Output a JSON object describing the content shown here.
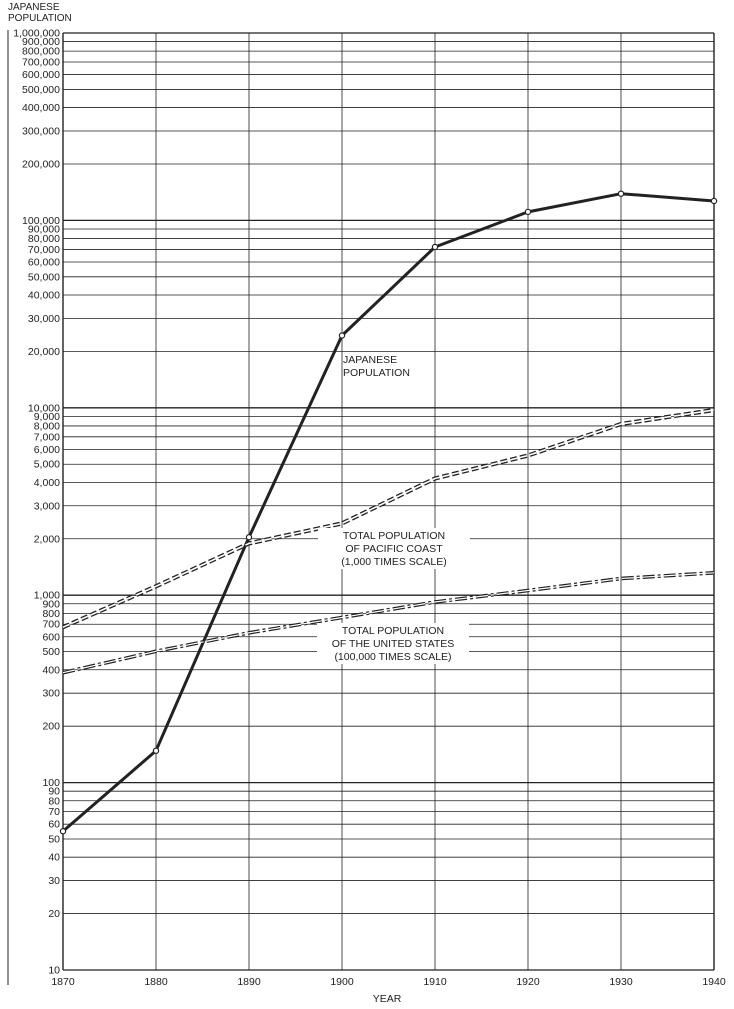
{
  "chart_data": {
    "type": "line",
    "title_lines": [
      "JAPANESE",
      "POPULATION"
    ],
    "xlabel": "YEAR",
    "x": [
      1870,
      1880,
      1890,
      1900,
      1910,
      1920,
      1930,
      1940
    ],
    "x_tick_labels": [
      "1870",
      "1880",
      "1890",
      "1900",
      "1910",
      "1920",
      "1930",
      "1940"
    ],
    "xlim": [
      1870,
      1940
    ],
    "yscale": "log",
    "ylim": [
      10,
      1000000
    ],
    "y_tick_labels": [
      {
        "v": 10,
        "t": "10"
      },
      {
        "v": 20,
        "t": "20"
      },
      {
        "v": 30,
        "t": "30"
      },
      {
        "v": 40,
        "t": "40"
      },
      {
        "v": 50,
        "t": "50"
      },
      {
        "v": 60,
        "t": "60"
      },
      {
        "v": 70,
        "t": "70"
      },
      {
        "v": 80,
        "t": "80"
      },
      {
        "v": 90,
        "t": "90"
      },
      {
        "v": 100,
        "t": "100"
      },
      {
        "v": 200,
        "t": "200"
      },
      {
        "v": 300,
        "t": "300"
      },
      {
        "v": 400,
        "t": "400"
      },
      {
        "v": 500,
        "t": "500"
      },
      {
        "v": 600,
        "t": "600"
      },
      {
        "v": 700,
        "t": "700"
      },
      {
        "v": 800,
        "t": "800"
      },
      {
        "v": 900,
        "t": "900"
      },
      {
        "v": 1000,
        "t": "1,000"
      },
      {
        "v": 2000,
        "t": "2,000"
      },
      {
        "v": 3000,
        "t": "3,000"
      },
      {
        "v": 4000,
        "t": "4,000"
      },
      {
        "v": 5000,
        "t": "5,000"
      },
      {
        "v": 6000,
        "t": "6,000"
      },
      {
        "v": 7000,
        "t": "7,000"
      },
      {
        "v": 8000,
        "t": "8,000"
      },
      {
        "v": 9000,
        "t": "9,000"
      },
      {
        "v": 10000,
        "t": "10,000"
      },
      {
        "v": 20000,
        "t": "20,000"
      },
      {
        "v": 30000,
        "t": "30,000"
      },
      {
        "v": 40000,
        "t": "40,000"
      },
      {
        "v": 50000,
        "t": "50,000"
      },
      {
        "v": 60000,
        "t": "60,000"
      },
      {
        "v": 70000,
        "t": "70,000"
      },
      {
        "v": 80000,
        "t": "80,000"
      },
      {
        "v": 90000,
        "t": "90,000"
      },
      {
        "v": 100000,
        "t": "100,000"
      },
      {
        "v": 200000,
        "t": "200,000"
      },
      {
        "v": 300000,
        "t": "300,000"
      },
      {
        "v": 400000,
        "t": "400,000"
      },
      {
        "v": 500000,
        "t": "500,000"
      },
      {
        "v": 600000,
        "t": "600,000"
      },
      {
        "v": 700000,
        "t": "700,000"
      },
      {
        "v": 800000,
        "t": "800,000"
      },
      {
        "v": 900000,
        "t": "900,000"
      },
      {
        "v": 1000000,
        "t": "1,000,000"
      }
    ],
    "grid": true,
    "series": [
      {
        "name": "JAPANESE POPULATION",
        "style": "solid",
        "markers": true,
        "x": [
          1870,
          1880,
          1890,
          1900,
          1910,
          1920,
          1930,
          1940
        ],
        "values": [
          55,
          148,
          2039,
          24326,
          72157,
          111010,
          138834,
          126947
        ]
      },
      {
        "name": "TOTAL POPULATION OF PACIFIC COAST (1,000 TIMES SCALE)",
        "style": "double-dashed",
        "markers": false,
        "x": [
          1870,
          1880,
          1890,
          1900,
          1910,
          1920,
          1930,
          1940
        ],
        "values": [
          675,
          1115,
          1889,
          2416,
          4193,
          5567,
          8194,
          9733
        ]
      },
      {
        "name": "TOTAL POPULATION OF THE UNITED STATES (100,000 TIMES SCALE)",
        "style": "dash-dot",
        "markers": false,
        "x": [
          1870,
          1880,
          1890,
          1900,
          1910,
          1920,
          1930,
          1940
        ],
        "values": [
          386,
          502,
          630,
          760,
          920,
          1060,
          1228,
          1317
        ]
      }
    ],
    "annotations": [
      {
        "series": 0,
        "lines": [
          "JAPANESE",
          "POPULATION"
        ]
      },
      {
        "series": 1,
        "lines": [
          "TOTAL POPULATION",
          "OF PACIFIC COAST",
          "(1,000 TIMES SCALE)"
        ]
      },
      {
        "series": 2,
        "lines": [
          "TOTAL POPULATION",
          "OF THE UNITED STATES",
          "(100,000 TIMES SCALE)"
        ]
      }
    ],
    "colors": {
      "ink": "#222222",
      "background": "#ffffff"
    }
  }
}
